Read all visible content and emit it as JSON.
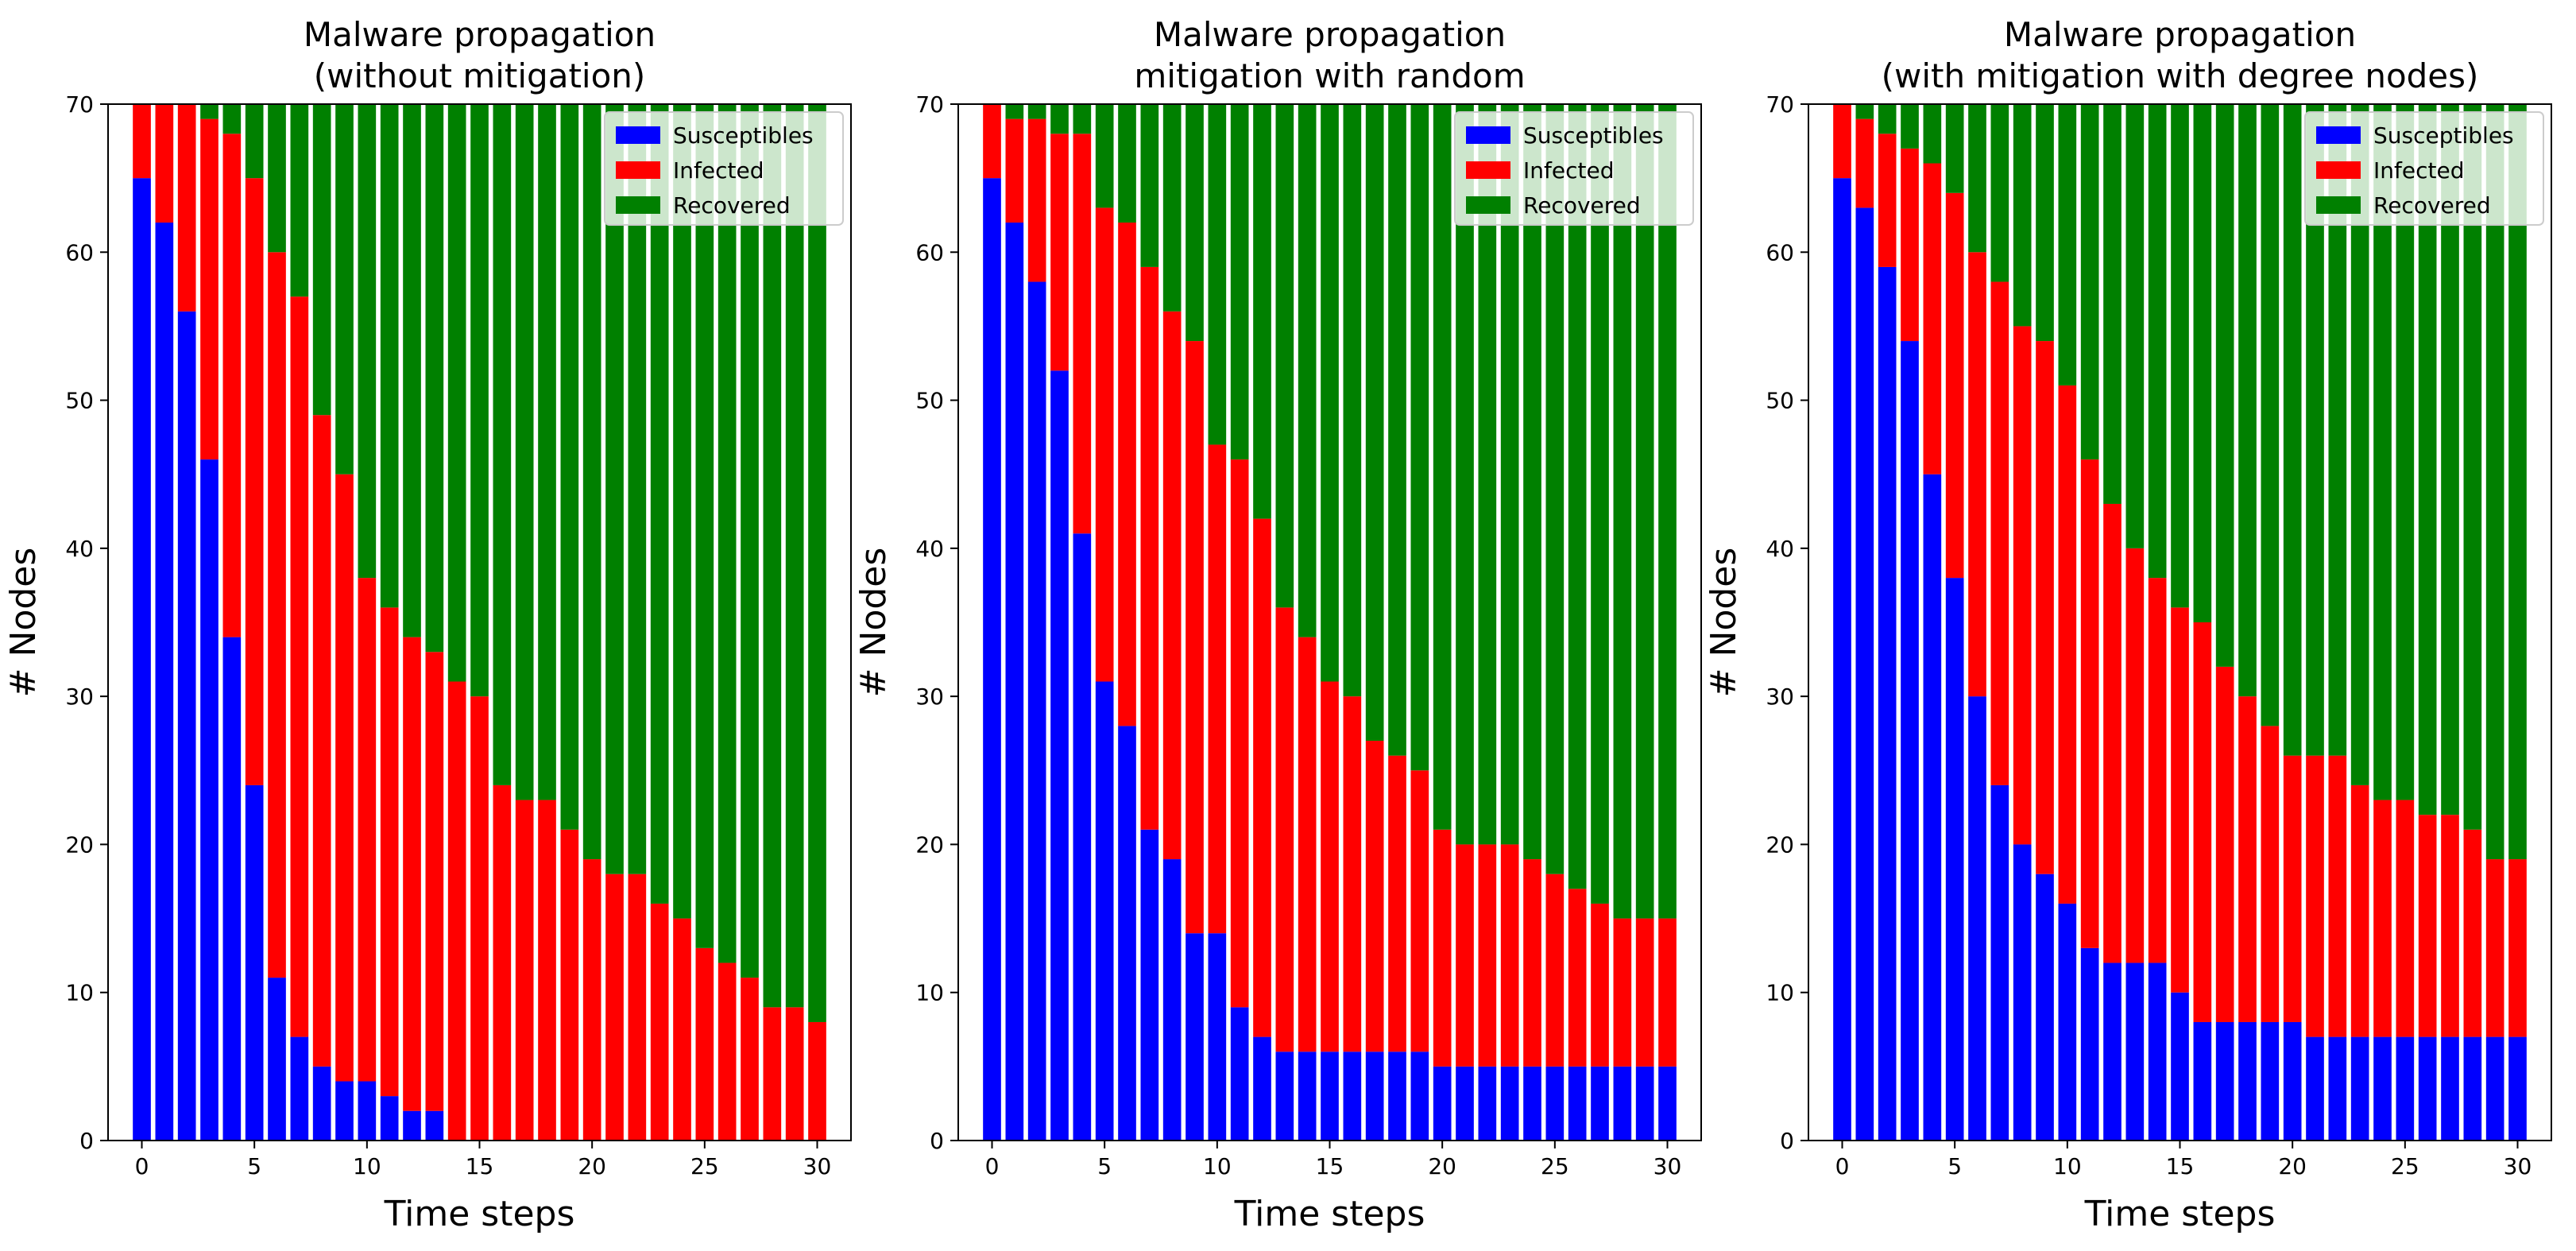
{
  "chart_data": [
    {
      "type": "bar",
      "stacked": true,
      "title": "Malware propagation\n(without mitigation)",
      "xlabel": "Time steps",
      "ylabel": "# Nodes",
      "xlim": [
        -1.5,
        31.5
      ],
      "ylim": [
        0,
        70
      ],
      "xticks": [
        0,
        5,
        10,
        15,
        20,
        25,
        30
      ],
      "yticks": [
        0,
        10,
        20,
        30,
        40,
        50,
        60,
        70
      ],
      "legend_position": "top-right",
      "x": [
        0,
        1,
        2,
        3,
        4,
        5,
        6,
        7,
        8,
        9,
        10,
        11,
        12,
        13,
        14,
        15,
        16,
        17,
        18,
        19,
        20,
        21,
        22,
        23,
        24,
        25,
        26,
        27,
        28,
        29,
        30
      ],
      "series": [
        {
          "name": "Susceptibles",
          "color": "#0000ff",
          "values": [
            65,
            62,
            56,
            46,
            34,
            24,
            11,
            7,
            5,
            4,
            4,
            3,
            2,
            2,
            0,
            0,
            0,
            0,
            0,
            0,
            0,
            0,
            0,
            0,
            0,
            0,
            0,
            0,
            0,
            0,
            0
          ]
        },
        {
          "name": "Infected",
          "color": "#ff0000",
          "values": [
            5,
            8,
            14,
            23,
            34,
            41,
            49,
            50,
            44,
            41,
            34,
            33,
            32,
            31,
            31,
            30,
            24,
            23,
            23,
            21,
            19,
            18,
            18,
            16,
            15,
            13,
            12,
            11,
            9,
            9,
            8
          ]
        },
        {
          "name": "Recovered",
          "color": "#008000",
          "values": [
            0,
            0,
            0,
            1,
            2,
            5,
            10,
            13,
            21,
            25,
            32,
            34,
            36,
            37,
            39,
            40,
            46,
            47,
            47,
            49,
            51,
            52,
            52,
            54,
            55,
            57,
            58,
            59,
            61,
            61,
            62
          ]
        }
      ]
    },
    {
      "type": "bar",
      "stacked": true,
      "title": "Malware propagation\nmitigation with random",
      "xlabel": "Time steps",
      "ylabel": "# Nodes",
      "xlim": [
        -1.5,
        31.5
      ],
      "ylim": [
        0,
        70
      ],
      "xticks": [
        0,
        5,
        10,
        15,
        20,
        25,
        30
      ],
      "yticks": [
        0,
        10,
        20,
        30,
        40,
        50,
        60,
        70
      ],
      "legend_position": "top-right",
      "x": [
        0,
        1,
        2,
        3,
        4,
        5,
        6,
        7,
        8,
        9,
        10,
        11,
        12,
        13,
        14,
        15,
        16,
        17,
        18,
        19,
        20,
        21,
        22,
        23,
        24,
        25,
        26,
        27,
        28,
        29,
        30
      ],
      "series": [
        {
          "name": "Susceptibles",
          "color": "#0000ff",
          "values": [
            65,
            62,
            58,
            52,
            41,
            31,
            28,
            21,
            19,
            14,
            14,
            9,
            7,
            6,
            6,
            6,
            6,
            6,
            6,
            6,
            5,
            5,
            5,
            5,
            5,
            5,
            5,
            5,
            5,
            5,
            5
          ]
        },
        {
          "name": "Infected",
          "color": "#ff0000",
          "values": [
            5,
            7,
            11,
            16,
            27,
            32,
            34,
            38,
            37,
            40,
            33,
            37,
            35,
            30,
            28,
            25,
            24,
            21,
            20,
            19,
            16,
            15,
            15,
            15,
            14,
            13,
            12,
            11,
            10,
            10,
            10
          ]
        },
        {
          "name": "Recovered",
          "color": "#008000",
          "values": [
            0,
            1,
            1,
            2,
            2,
            7,
            8,
            11,
            14,
            16,
            23,
            24,
            28,
            34,
            36,
            39,
            40,
            43,
            44,
            45,
            49,
            50,
            50,
            50,
            51,
            52,
            53,
            54,
            55,
            55,
            55
          ]
        }
      ]
    },
    {
      "type": "bar",
      "stacked": true,
      "title": "Malware propagation\n(with mitigation with degree nodes)",
      "xlabel": "Time steps",
      "ylabel": "# Nodes",
      "xlim": [
        -1.5,
        31.5
      ],
      "ylim": [
        0,
        70
      ],
      "xticks": [
        0,
        5,
        10,
        15,
        20,
        25,
        30
      ],
      "yticks": [
        0,
        10,
        20,
        30,
        40,
        50,
        60,
        70
      ],
      "legend_position": "top-right",
      "x": [
        0,
        1,
        2,
        3,
        4,
        5,
        6,
        7,
        8,
        9,
        10,
        11,
        12,
        13,
        14,
        15,
        16,
        17,
        18,
        19,
        20,
        21,
        22,
        23,
        24,
        25,
        26,
        27,
        28,
        29,
        30
      ],
      "series": [
        {
          "name": "Susceptibles",
          "color": "#0000ff",
          "values": [
            65,
            63,
            59,
            54,
            45,
            38,
            30,
            24,
            20,
            18,
            16,
            13,
            12,
            12,
            12,
            10,
            8,
            8,
            8,
            8,
            8,
            7,
            7,
            7,
            7,
            7,
            7,
            7,
            7,
            7,
            7
          ]
        },
        {
          "name": "Infected",
          "color": "#ff0000",
          "values": [
            5,
            6,
            9,
            13,
            21,
            26,
            30,
            34,
            35,
            36,
            35,
            33,
            31,
            28,
            26,
            26,
            27,
            24,
            22,
            20,
            18,
            19,
            19,
            17,
            16,
            16,
            15,
            15,
            14,
            12,
            12
          ]
        },
        {
          "name": "Recovered",
          "color": "#008000",
          "values": [
            0,
            1,
            2,
            3,
            4,
            6,
            10,
            12,
            15,
            16,
            19,
            24,
            27,
            30,
            32,
            34,
            35,
            38,
            40,
            42,
            44,
            44,
            44,
            46,
            47,
            47,
            48,
            48,
            49,
            51,
            51
          ]
        }
      ]
    }
  ]
}
